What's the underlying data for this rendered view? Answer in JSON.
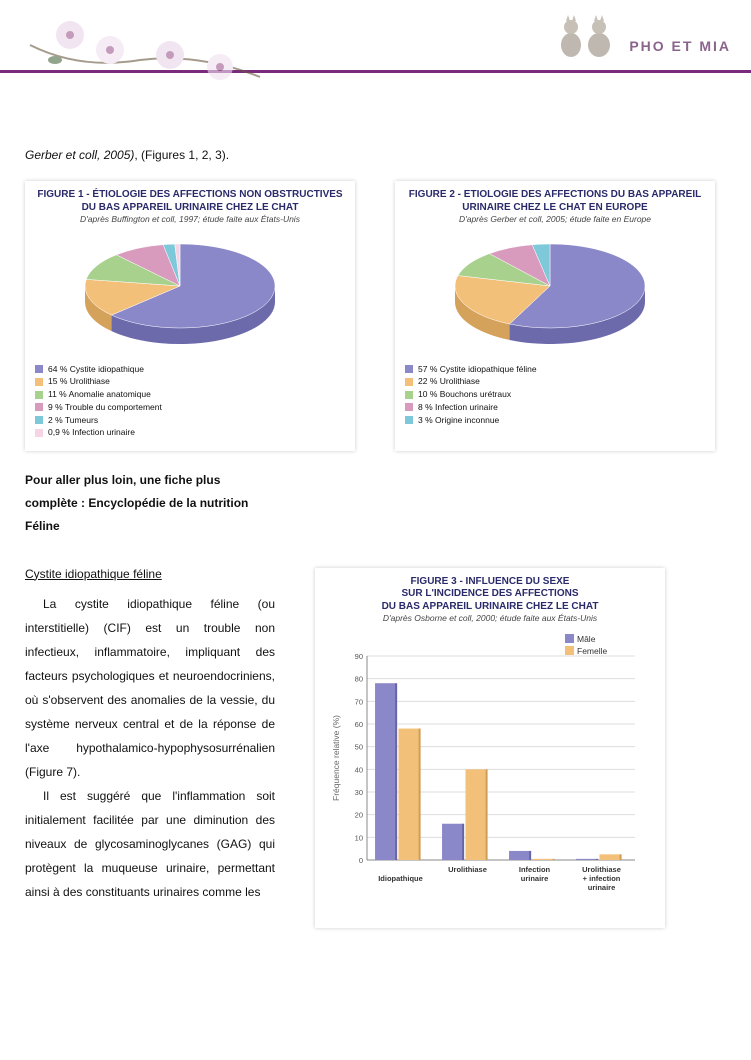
{
  "header": {
    "site_title": "PHO ET MIA"
  },
  "intro": {
    "ref_italic": "Gerber et coll, 2005)",
    "ref_plain": ", (Figures 1, 2, 3)."
  },
  "fig1": {
    "type": "pie",
    "title_line1": "FIGURE 1 - ÉTIOLOGIE DES AFFECTIONS NON OBSTRUCTIVES",
    "title_line2": "DU BAS APPAREIL URINAIRE CHEZ LE CHAT",
    "subtitle": "D'après Buffington et coll, 1997; étude faite aux États-Unis",
    "background": "#ffffff",
    "slices": [
      {
        "label": "64 % Cystite idiopathique",
        "value": 64,
        "color": "#8b88c9"
      },
      {
        "label": "15 % Urolithiase",
        "value": 15,
        "color": "#f3c07a"
      },
      {
        "label": "11 % Anomalie anatomique",
        "value": 11,
        "color": "#a9d18e"
      },
      {
        "label": "9 % Trouble du comportement",
        "value": 9,
        "color": "#d99bbd"
      },
      {
        "label": "2 % Tumeurs",
        "value": 2,
        "color": "#7dc9d9"
      },
      {
        "label": "0,9 % Infection urinaire",
        "value": 0.9,
        "color": "#f5d5e4"
      }
    ]
  },
  "fig2": {
    "type": "pie",
    "title_line1": "FIGURE 2 - ETIOLOGIE DES AFFECTIONS DU BAS APPAREIL",
    "title_line2": "URINAIRE CHEZ LE CHAT EN EUROPE",
    "subtitle": "D'après Gerber et coll, 2005; étude faite en Europe",
    "background": "#ffffff",
    "slices": [
      {
        "label": "57 % Cystite idiopathique féline",
        "value": 57,
        "color": "#8b88c9"
      },
      {
        "label": "22 % Urolithiase",
        "value": 22,
        "color": "#f3c07a"
      },
      {
        "label": "10 % Bouchons urétraux",
        "value": 10,
        "color": "#a9d18e"
      },
      {
        "label": "8 % Infection urinaire",
        "value": 8,
        "color": "#d99bbd"
      },
      {
        "label": "3 % Origine inconnue",
        "value": 3,
        "color": "#7dc9d9"
      }
    ]
  },
  "section": {
    "more_info": "Pour aller plus loin, une fiche plus complète : Encyclopédie de la nutrition Féline",
    "heading": "Cystite idiopathique féline",
    "para1": "La cystite idiopathique féline (ou interstitielle) (CIF) est un trouble non infectieux, inflammatoire, impliquant des facteurs psychologiques et neuroendocriniens, où s'observent des anomalies de la vessie, du système nerveux central et de la réponse de l'axe hypothalamico-hypophysosurrénalien (Figure 7).",
    "para2": "Il est suggéré que l'inflammation soit initialement facilitée par une diminution des niveaux de glycosaminoglycanes (GAG) qui protègent la muqueuse urinaire, permettant ainsi à des constituants urinaires comme les"
  },
  "fig3": {
    "type": "bar",
    "title_line1": "FIGURE 3 - INFLUENCE DU SEXE",
    "title_line2": "SUR L'INCIDENCE DES AFFECTIONS",
    "title_line3": "DU BAS APPAREIL URINAIRE CHEZ LE CHAT",
    "subtitle": "D'après Osborne et coll, 2000; étude faite aux États-Unis",
    "ylabel": "Fréquence relative (%)",
    "ylim": [
      0,
      90
    ],
    "ytick_step": 10,
    "grid_color": "#dddddd",
    "background": "#ffffff",
    "categories": [
      "Idiopathique",
      "Urolithiase",
      "Infection urinaire",
      "Urolithiase + infection urinaire"
    ],
    "series": [
      {
        "name": "Mâle",
        "color": "#8b88c9",
        "values": [
          78,
          16,
          4,
          0.5
        ]
      },
      {
        "name": "Femelle",
        "color": "#f3c07a",
        "values": [
          58,
          40,
          0.5,
          2.5
        ]
      }
    ],
    "bar_width": 0.35,
    "label_fontsize": 7.5
  }
}
